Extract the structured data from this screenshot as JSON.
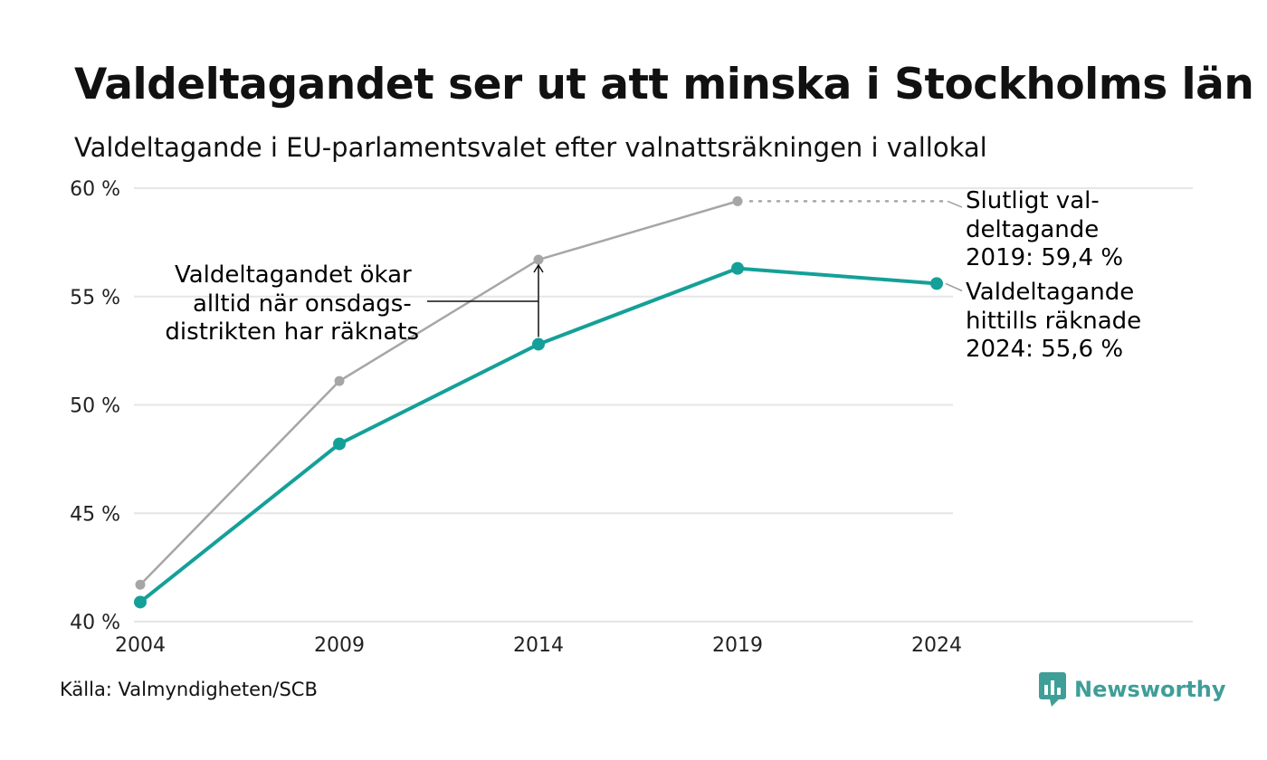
{
  "title": "Valdeltagandet ser ut att minska i Stockholms län",
  "subtitle": "Valdeltagande i EU-parlamentsvalet efter valnattsräkningen i vallokal",
  "source": "Källa: Valmyndigheten/SCB",
  "brand": "Newsworthy",
  "colors": {
    "final": "#a6a6a6",
    "counted": "#14a098",
    "grid": "#e6e6e6",
    "text": "#111111",
    "brand": "#3f9e98"
  },
  "chart_data": {
    "type": "line",
    "x": [
      2004,
      2009,
      2014,
      2019,
      2024
    ],
    "ylim": [
      40,
      60
    ],
    "yticks": [
      40,
      45,
      50,
      55,
      60
    ],
    "ytick_labels": [
      "40 %",
      "45 %",
      "50 %",
      "55 %",
      "60 %"
    ],
    "xtick_labels": [
      "2004",
      "2009",
      "2014",
      "2019",
      "2024"
    ],
    "grid": true,
    "series": [
      {
        "key": "final",
        "values": [
          41.7,
          51.1,
          56.7,
          59.4,
          null
        ]
      },
      {
        "key": "counted",
        "values": [
          40.9,
          48.2,
          52.8,
          56.3,
          55.6
        ]
      }
    ],
    "annotations": {
      "final_label": [
        "Slutligt val-",
        "deltagande",
        "2019: 59,4 %"
      ],
      "counted_label": [
        "Valdeltagande",
        "hittills räknade",
        "2024: 55,6 %"
      ],
      "gap_label": [
        "Valdeltagandet ökar",
        "alltid när onsdags-",
        "distrikten har räknats"
      ]
    }
  }
}
